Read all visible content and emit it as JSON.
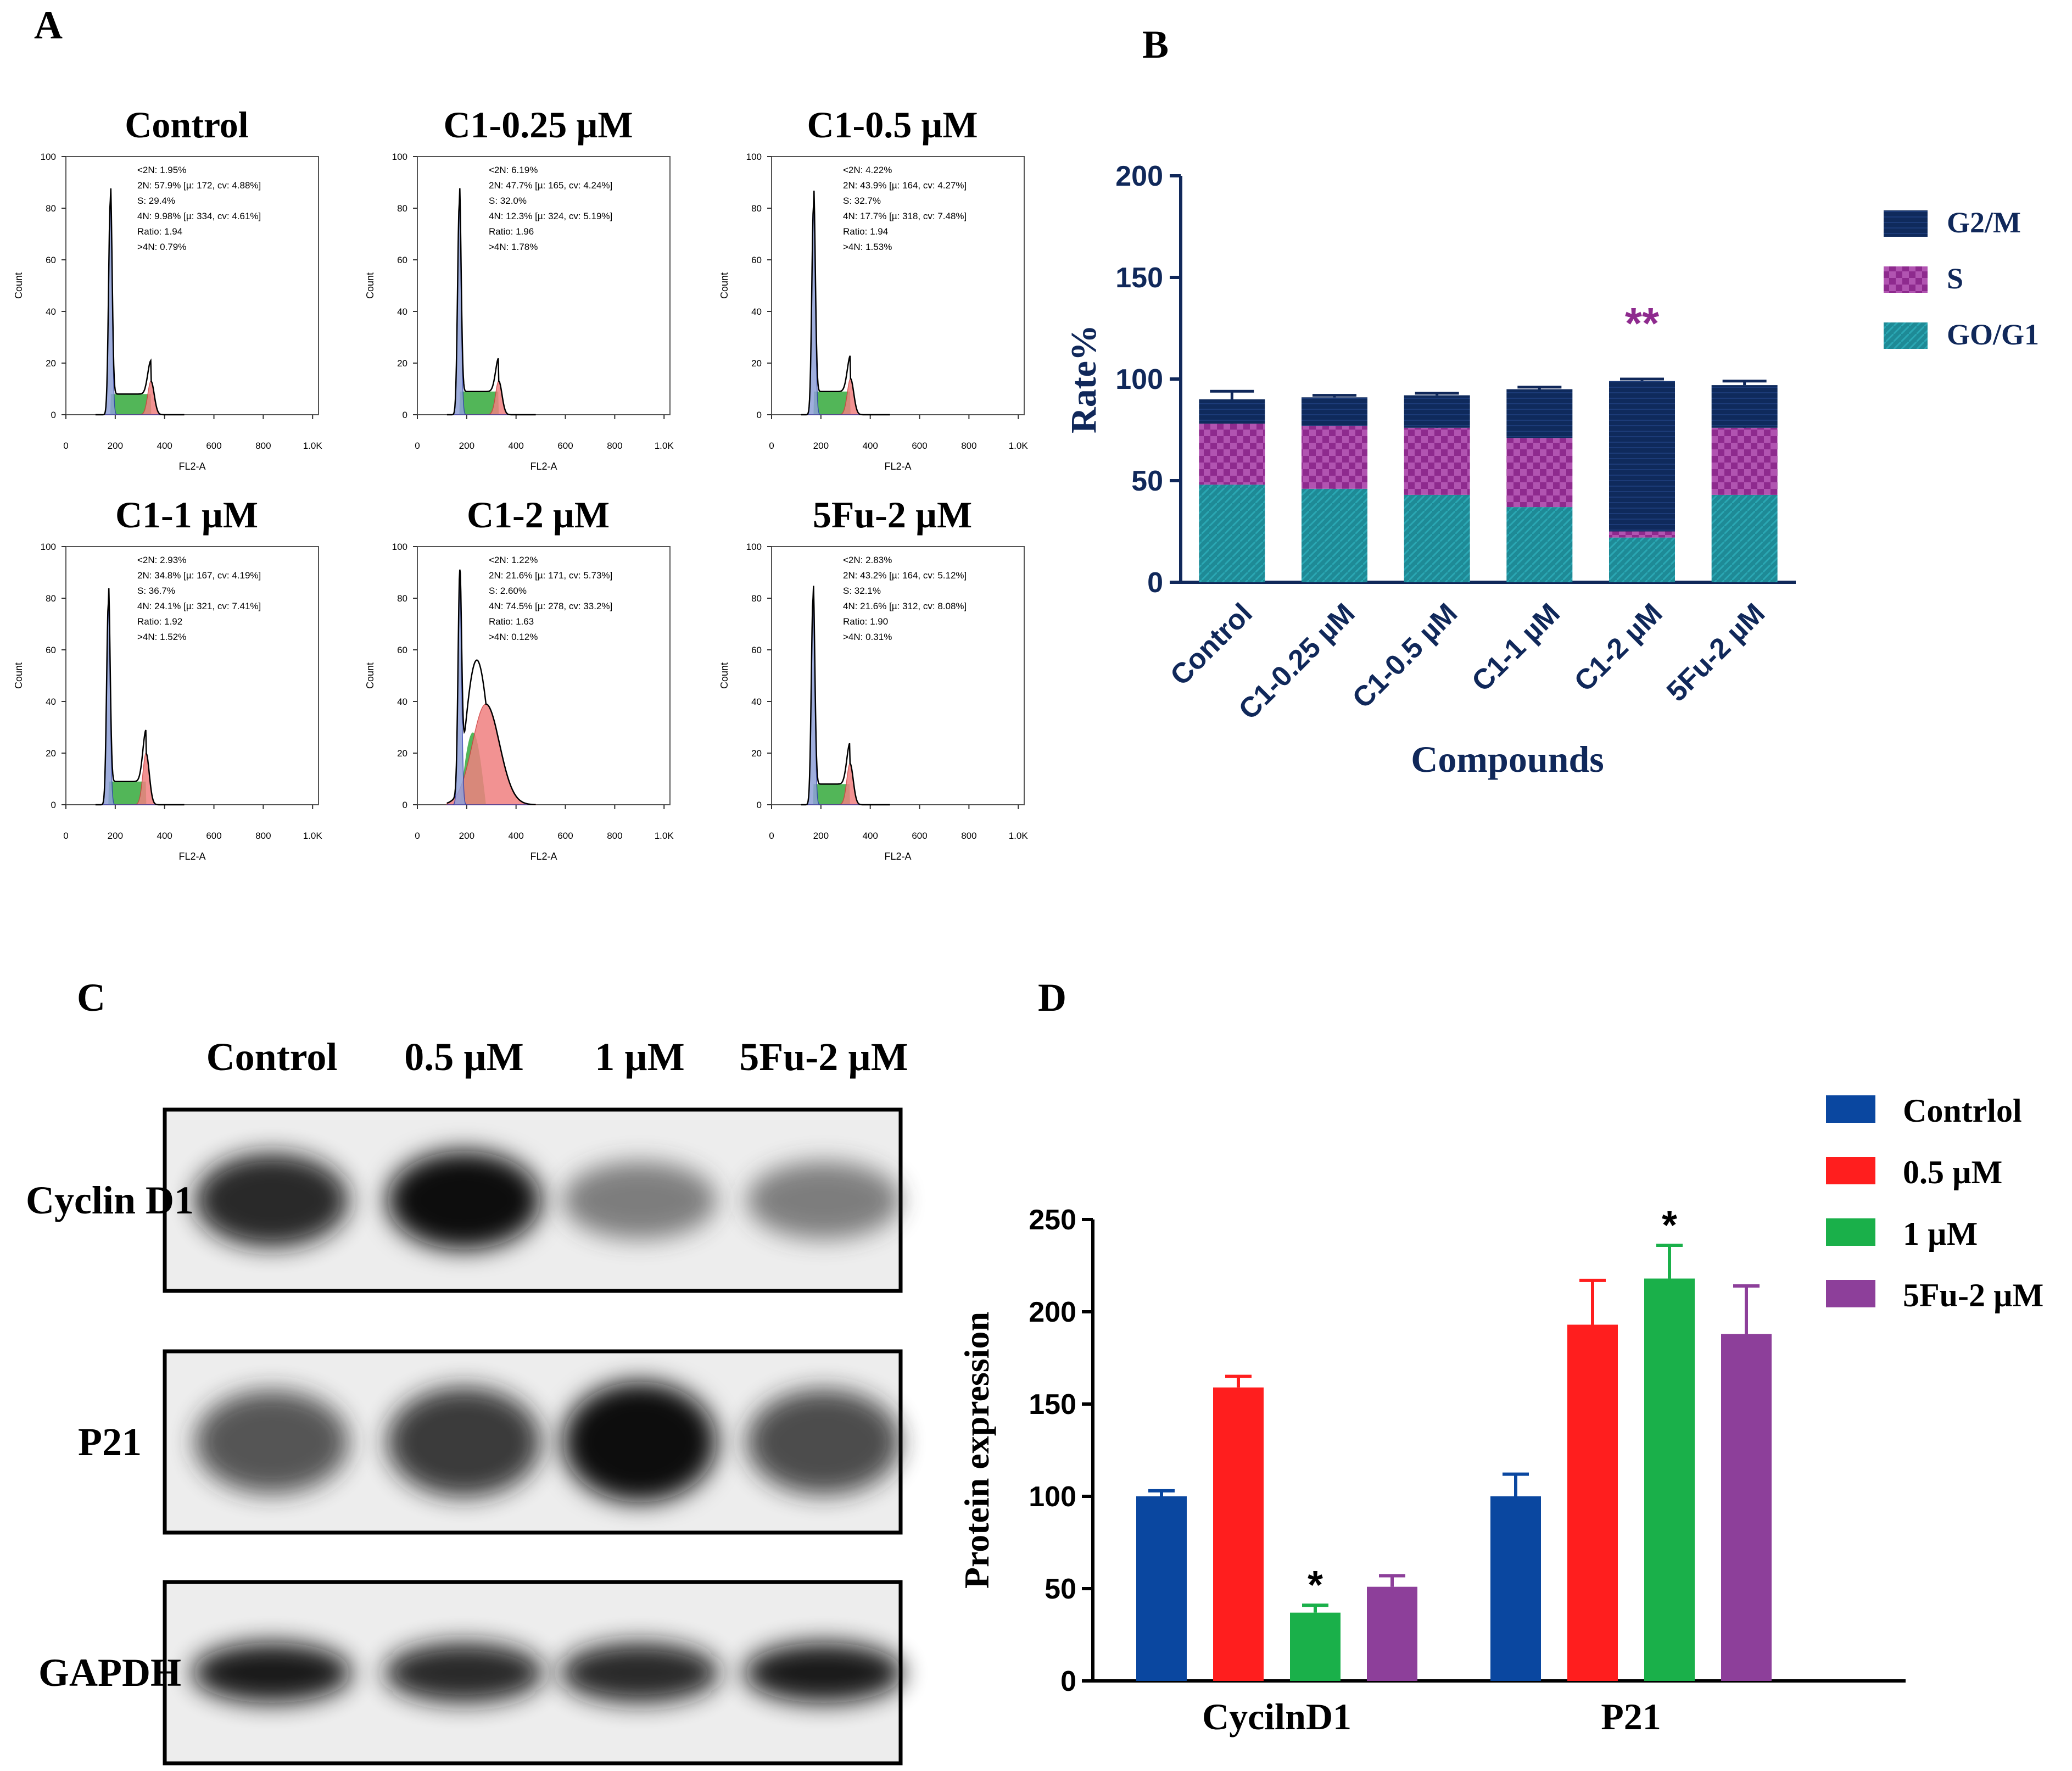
{
  "panels": {
    "a": "A",
    "b": "B",
    "c": "C",
    "d": "D"
  },
  "colors": {
    "g2m": "#0f2a5c",
    "s": "#8e2a8e",
    "g0g1": "#1e8a96",
    "d_control": "#0a47a0",
    "d_05": "#ff1e1e",
    "d_1": "#1ab04a",
    "d_5fu": "#8d3f9a",
    "flow_g1": "#8fa0d8",
    "flow_s": "#3fae46",
    "flow_g2": "#f08080",
    "axis_navy": "#10285a"
  },
  "chart_data": [
    {
      "type": "histogram",
      "panel": "A",
      "xlabel": "FL2-A",
      "ylabel": "Count",
      "x_ticks": [
        "0",
        "200",
        "400",
        "600",
        "800",
        "1.0K"
      ],
      "y_ticks": [
        "0",
        "20",
        "40",
        "60",
        "80",
        "100"
      ],
      "xlim": [
        0,
        1024
      ],
      "ylim": [
        0,
        100
      ],
      "plots": [
        {
          "title": "Control",
          "stats": [
            "<2N: 1.95%",
            "2N: 57.9%  [µ: 172, cv: 4.88%]",
            "S: 29.4%",
            "4N: 9.98%  [µ: 334, cv: 4.61%]",
            "Ratio: 1.94",
            ">4N: 0.79%"
          ],
          "g1_peak": 83,
          "s_level": 8,
          "g2_peak": 13,
          "g1_pos": 180,
          "g2_pos": 345
        },
        {
          "title": "C1-0.25 µM",
          "stats": [
            "<2N: 6.19%",
            "2N: 47.7%  [µ: 165, cv: 4.24%]",
            "S: 32.0%",
            "4N: 12.3%  [µ: 324, cv: 5.19%]",
            "Ratio: 1.96",
            ">4N: 1.78%"
          ],
          "g1_peak": 82,
          "s_level": 9,
          "g2_peak": 13,
          "g1_pos": 170,
          "g2_pos": 330
        },
        {
          "title": "C1-0.5 µM",
          "stats": [
            "<2N: 4.22%",
            "2N: 43.9%  [µ: 164, cv: 4.27%]",
            "S: 32.7%",
            "4N: 17.7%  [µ: 318, cv: 7.48%]",
            "Ratio: 1.94",
            ">4N: 1.53%"
          ],
          "g1_peak": 81,
          "s_level": 9,
          "g2_peak": 14,
          "g1_pos": 170,
          "g2_pos": 320
        },
        {
          "title": "C1-1 µM",
          "stats": [
            "<2N: 2.93%",
            "2N: 34.8%  [µ: 167, cv: 4.19%]",
            "S: 36.7%",
            "4N: 24.1%  [µ: 321, cv: 7.41%]",
            "Ratio: 1.92",
            ">4N: 1.52%"
          ],
          "g1_peak": 78,
          "s_level": 9,
          "g2_peak": 20,
          "g1_pos": 172,
          "g2_pos": 325
        },
        {
          "title": "C1-2 µM",
          "stats": [
            "<2N: 1.22%",
            "2N: 21.6%  [µ: 171, cv: 5.73%]",
            "S: 2.60%",
            "4N: 74.5%  [µ: 278, cv: 33.2%]",
            "Ratio: 1.63",
            ">4N: 0.12%"
          ],
          "g1_peak": 85,
          "s_level": 28,
          "g2_peak": 39,
          "g1_pos": 172,
          "g2_pos": 278
        },
        {
          "title": "5Fu-2 µM",
          "stats": [
            "<2N: 2.83%",
            "2N: 43.2%  [µ: 164, cv: 5.12%]",
            "S: 32.1%",
            "4N: 21.6%  [µ: 312, cv: 8.08%]",
            "Ratio: 1.90",
            ">4N: 0.31%"
          ],
          "g1_peak": 80,
          "s_level": 8,
          "g2_peak": 16,
          "g1_pos": 168,
          "g2_pos": 318
        }
      ]
    },
    {
      "type": "bar",
      "stacked": true,
      "panel": "B",
      "xlabel": "Compounds",
      "ylabel": "Rate%",
      "ylim": [
        0,
        200
      ],
      "yticks": [
        0,
        50,
        100,
        150,
        200
      ],
      "categories": [
        "Control",
        "C1-0.25 µM",
        "C1-0.5 µM",
        "C1-1 µM",
        "C1-2 µM",
        "5Fu-2 µM"
      ],
      "series": [
        {
          "name": "GO/G1",
          "values": [
            48,
            46,
            43,
            37,
            22,
            43
          ],
          "errors": [
            2,
            1,
            1,
            2,
            1,
            1
          ]
        },
        {
          "name": "S",
          "values": [
            30,
            31,
            33,
            34,
            3,
            33
          ],
          "errors": [
            2,
            2,
            1,
            2,
            1,
            2
          ]
        },
        {
          "name": "G2/M",
          "values": [
            12,
            14,
            16,
            24,
            74,
            21
          ],
          "errors": [
            4,
            1,
            1,
            1,
            1,
            2
          ]
        }
      ],
      "annotations": [
        {
          "category": "C1-2 µM",
          "text": "**"
        }
      ],
      "legend": [
        "G2/M",
        "S",
        "GO/G1"
      ]
    },
    {
      "type": "bar",
      "panel": "D",
      "xlabel": "",
      "ylabel": "Protein expression",
      "ylim": [
        0,
        250
      ],
      "yticks": [
        0,
        50,
        100,
        150,
        200,
        250
      ],
      "categories": [
        "CycilnD1",
        "P21"
      ],
      "series": [
        {
          "name": "Contrlol",
          "values": [
            100,
            100
          ],
          "errors": [
            3,
            12
          ]
        },
        {
          "name": "0.5 µM",
          "values": [
            159,
            193
          ],
          "errors": [
            6,
            24
          ]
        },
        {
          "name": "1 µM",
          "values": [
            37,
            218
          ],
          "errors": [
            4,
            18
          ]
        },
        {
          "name": "5Fu-2  µM",
          "values": [
            51,
            188
          ],
          "errors": [
            6,
            26
          ]
        }
      ],
      "annotations": [
        {
          "category": "CycilnD1",
          "series": "1 µM",
          "text": "*"
        },
        {
          "category": "P21",
          "series": "1 µM",
          "text": "*"
        }
      ]
    }
  ],
  "blot": {
    "lanes": [
      "Control",
      "0.5 µM",
      "1 µM",
      "5Fu-2 µM"
    ],
    "rows": [
      {
        "label": "Cyclin D1",
        "intensities": [
          0.85,
          1.0,
          0.35,
          0.35
        ]
      },
      {
        "label": "P21",
        "intensities": [
          0.6,
          0.75,
          1.0,
          0.65
        ]
      },
      {
        "label": "GAPDH",
        "intensities": [
          0.9,
          0.85,
          0.85,
          0.9
        ]
      }
    ]
  }
}
